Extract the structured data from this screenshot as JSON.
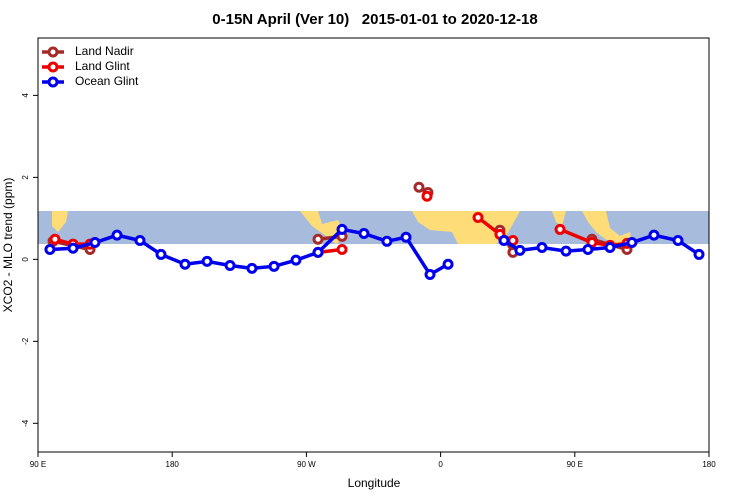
{
  "chart_data": {
    "type": "line",
    "title": "0-15N April (Ver 10)   2015-01-01 to 2020-12-18",
    "xlabel": "Longitude",
    "ylabel": "XCO2 - MLO trend (ppm)",
    "xlim": [
      90,
      540
    ],
    "ylim": [
      -4.7,
      5.4
    ],
    "xticks": [
      {
        "value": 90,
        "label": "90 E"
      },
      180,
      {
        "value": 270,
        "label": "90 W"
      },
      {
        "value": 360,
        "label": "0"
      },
      {
        "value": 450,
        "label": "90 E"
      },
      {
        "value": 540,
        "label": "180"
      }
    ],
    "yticks": [
      -4,
      -2,
      0,
      2,
      4
    ],
    "legend": "upper left",
    "series": [
      {
        "name": "Land Nadir",
        "color": "#a52a2a",
        "x": [
          100.1,
          124.9,
          200,
          277.8,
          293.9,
          320,
          345.5,
          351.5,
          380,
          399.8,
          408.5,
          440,
          461.5,
          485.0
        ],
        "values": [
          0.44,
          0.24,
          null,
          0.49,
          0.56,
          null,
          1.76,
          1.63,
          null,
          0.71,
          0.17,
          null,
          0.49,
          0.24
        ]
      },
      {
        "name": "Land Glint",
        "color": "#ee0000",
        "x": [
          101.4,
          113.5,
          124.9,
          200,
          277.8,
          293.9,
          320,
          350.9,
          370,
          385.1,
          399.8,
          408.5,
          425,
          440.1,
          461.5,
          473.6,
          485.0
        ],
        "values": [
          0.49,
          0.37,
          0.37,
          null,
          0.17,
          0.24,
          null,
          1.54,
          null,
          1.02,
          0.61,
          0.46,
          null,
          0.73,
          0.41,
          0.34,
          0.39
        ]
      },
      {
        "name": "Ocean Glint",
        "color": "#0000ee",
        "x": [
          98.0,
          113.5,
          128.2,
          143.0,
          158.4,
          172.5,
          188.6,
          203.4,
          218.8,
          233.5,
          248.3,
          263.0,
          277.8,
          293.9,
          308.6,
          324.0,
          336.8,
          352.9,
          365.0,
          385,
          402.5,
          413.2,
          428.0,
          444.1,
          458.8,
          473.6,
          488.3,
          503.1,
          519.2,
          533.3
        ],
        "values": [
          0.24,
          0.27,
          0.41,
          0.59,
          0.46,
          0.12,
          -0.12,
          -0.05,
          -0.15,
          -0.22,
          -0.17,
          -0.02,
          0.17,
          0.73,
          0.63,
          0.44,
          0.54,
          -0.37,
          -0.12,
          null,
          0.46,
          0.22,
          0.29,
          0.2,
          0.24,
          0.29,
          0.41,
          0.59,
          0.46,
          0.12
        ]
      }
    ]
  }
}
